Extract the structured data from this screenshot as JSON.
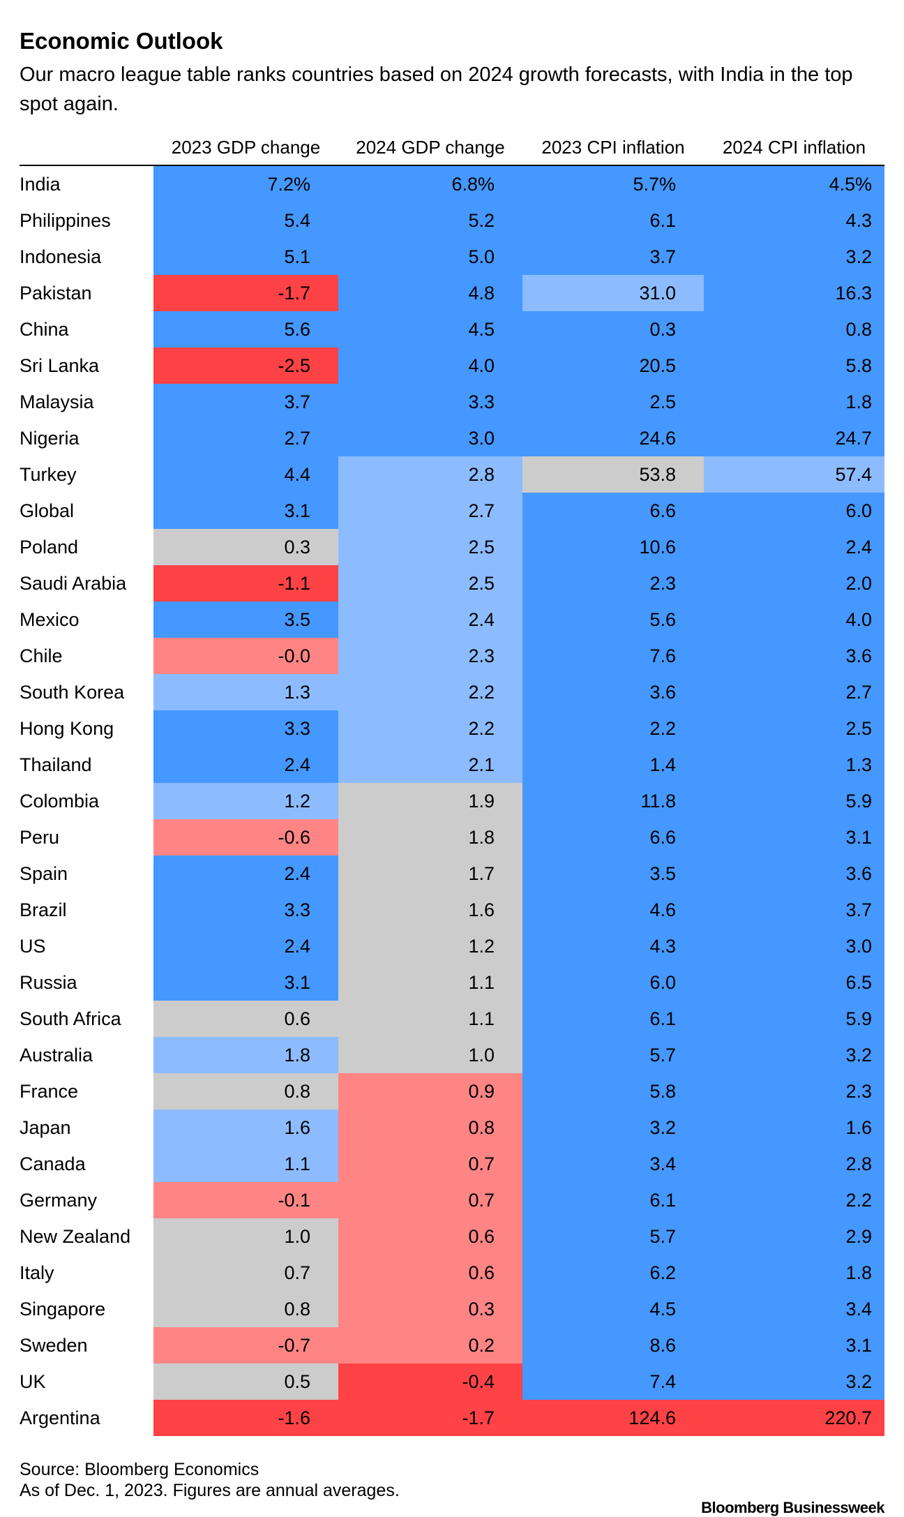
{
  "title": "Economic Outlook",
  "subtitle": "Our macro league table ranks countries based on 2024 growth forecasts, with India in the top spot again.",
  "footer": {
    "source": "Source: Bloomberg Economics",
    "note": "As of Dec. 1, 2023. Figures are annual averages.",
    "brand": "Bloomberg Businessweek"
  },
  "colors": {
    "strong_blue": "#4598FF",
    "light_blue": "#8CBCFF",
    "gray": "#CCCCCC",
    "light_red": "#FF8585",
    "strong_red": "#FF4245"
  },
  "chart_data": {
    "type": "table",
    "title": "Economic Outlook",
    "columns": [
      "2023 GDP change",
      "2024 GDP change",
      "2023 CPI inflation",
      "2024 CPI inflation"
    ],
    "rows": [
      {
        "country": "India",
        "values": [
          "7.2%",
          "6.8%",
          "5.7%",
          "4.5%"
        ],
        "shades": [
          "strong_blue",
          "strong_blue",
          "strong_blue",
          "strong_blue"
        ]
      },
      {
        "country": "Philippines",
        "values": [
          "5.4",
          "5.2",
          "6.1",
          "4.3"
        ],
        "shades": [
          "strong_blue",
          "strong_blue",
          "strong_blue",
          "strong_blue"
        ]
      },
      {
        "country": "Indonesia",
        "values": [
          "5.1",
          "5.0",
          "3.7",
          "3.2"
        ],
        "shades": [
          "strong_blue",
          "strong_blue",
          "strong_blue",
          "strong_blue"
        ]
      },
      {
        "country": "Pakistan",
        "values": [
          "-1.7",
          "4.8",
          "31.0",
          "16.3"
        ],
        "shades": [
          "strong_red",
          "strong_blue",
          "light_blue",
          "strong_blue"
        ]
      },
      {
        "country": "China",
        "values": [
          "5.6",
          "4.5",
          "0.3",
          "0.8"
        ],
        "shades": [
          "strong_blue",
          "strong_blue",
          "strong_blue",
          "strong_blue"
        ]
      },
      {
        "country": "Sri Lanka",
        "values": [
          "-2.5",
          "4.0",
          "20.5",
          "5.8"
        ],
        "shades": [
          "strong_red",
          "strong_blue",
          "strong_blue",
          "strong_blue"
        ]
      },
      {
        "country": "Malaysia",
        "values": [
          "3.7",
          "3.3",
          "2.5",
          "1.8"
        ],
        "shades": [
          "strong_blue",
          "strong_blue",
          "strong_blue",
          "strong_blue"
        ]
      },
      {
        "country": "Nigeria",
        "values": [
          "2.7",
          "3.0",
          "24.6",
          "24.7"
        ],
        "shades": [
          "strong_blue",
          "strong_blue",
          "strong_blue",
          "strong_blue"
        ]
      },
      {
        "country": "Turkey",
        "values": [
          "4.4",
          "2.8",
          "53.8",
          "57.4"
        ],
        "shades": [
          "strong_blue",
          "light_blue",
          "gray",
          "light_blue"
        ]
      },
      {
        "country": "Global",
        "values": [
          "3.1",
          "2.7",
          "6.6",
          "6.0"
        ],
        "shades": [
          "strong_blue",
          "light_blue",
          "strong_blue",
          "strong_blue"
        ]
      },
      {
        "country": "Poland",
        "values": [
          "0.3",
          "2.5",
          "10.6",
          "2.4"
        ],
        "shades": [
          "gray",
          "light_blue",
          "strong_blue",
          "strong_blue"
        ]
      },
      {
        "country": "Saudi Arabia",
        "values": [
          "-1.1",
          "2.5",
          "2.3",
          "2.0"
        ],
        "shades": [
          "strong_red",
          "light_blue",
          "strong_blue",
          "strong_blue"
        ]
      },
      {
        "country": "Mexico",
        "values": [
          "3.5",
          "2.4",
          "5.6",
          "4.0"
        ],
        "shades": [
          "strong_blue",
          "light_blue",
          "strong_blue",
          "strong_blue"
        ]
      },
      {
        "country": "Chile",
        "values": [
          "-0.0",
          "2.3",
          "7.6",
          "3.6"
        ],
        "shades": [
          "light_red",
          "light_blue",
          "strong_blue",
          "strong_blue"
        ]
      },
      {
        "country": "South Korea",
        "values": [
          "1.3",
          "2.2",
          "3.6",
          "2.7"
        ],
        "shades": [
          "light_blue",
          "light_blue",
          "strong_blue",
          "strong_blue"
        ]
      },
      {
        "country": "Hong Kong",
        "values": [
          "3.3",
          "2.2",
          "2.2",
          "2.5"
        ],
        "shades": [
          "strong_blue",
          "light_blue",
          "strong_blue",
          "strong_blue"
        ]
      },
      {
        "country": "Thailand",
        "values": [
          "2.4",
          "2.1",
          "1.4",
          "1.3"
        ],
        "shades": [
          "strong_blue",
          "light_blue",
          "strong_blue",
          "strong_blue"
        ]
      },
      {
        "country": "Colombia",
        "values": [
          "1.2",
          "1.9",
          "11.8",
          "5.9"
        ],
        "shades": [
          "light_blue",
          "gray",
          "strong_blue",
          "strong_blue"
        ]
      },
      {
        "country": "Peru",
        "values": [
          "-0.6",
          "1.8",
          "6.6",
          "3.1"
        ],
        "shades": [
          "light_red",
          "gray",
          "strong_blue",
          "strong_blue"
        ]
      },
      {
        "country": "Spain",
        "values": [
          "2.4",
          "1.7",
          "3.5",
          "3.6"
        ],
        "shades": [
          "strong_blue",
          "gray",
          "strong_blue",
          "strong_blue"
        ]
      },
      {
        "country": "Brazil",
        "values": [
          "3.3",
          "1.6",
          "4.6",
          "3.7"
        ],
        "shades": [
          "strong_blue",
          "gray",
          "strong_blue",
          "strong_blue"
        ]
      },
      {
        "country": "US",
        "values": [
          "2.4",
          "1.2",
          "4.3",
          "3.0"
        ],
        "shades": [
          "strong_blue",
          "gray",
          "strong_blue",
          "strong_blue"
        ]
      },
      {
        "country": "Russia",
        "values": [
          "3.1",
          "1.1",
          "6.0",
          "6.5"
        ],
        "shades": [
          "strong_blue",
          "gray",
          "strong_blue",
          "strong_blue"
        ]
      },
      {
        "country": "South Africa",
        "values": [
          "0.6",
          "1.1",
          "6.1",
          "5.9"
        ],
        "shades": [
          "gray",
          "gray",
          "strong_blue",
          "strong_blue"
        ]
      },
      {
        "country": "Australia",
        "values": [
          "1.8",
          "1.0",
          "5.7",
          "3.2"
        ],
        "shades": [
          "light_blue",
          "gray",
          "strong_blue",
          "strong_blue"
        ]
      },
      {
        "country": "France",
        "values": [
          "0.8",
          "0.9",
          "5.8",
          "2.3"
        ],
        "shades": [
          "gray",
          "light_red",
          "strong_blue",
          "strong_blue"
        ]
      },
      {
        "country": "Japan",
        "values": [
          "1.6",
          "0.8",
          "3.2",
          "1.6"
        ],
        "shades": [
          "light_blue",
          "light_red",
          "strong_blue",
          "strong_blue"
        ]
      },
      {
        "country": "Canada",
        "values": [
          "1.1",
          "0.7",
          "3.4",
          "2.8"
        ],
        "shades": [
          "light_blue",
          "light_red",
          "strong_blue",
          "strong_blue"
        ]
      },
      {
        "country": "Germany",
        "values": [
          "-0.1",
          "0.7",
          "6.1",
          "2.2"
        ],
        "shades": [
          "light_red",
          "light_red",
          "strong_blue",
          "strong_blue"
        ]
      },
      {
        "country": "New Zealand",
        "values": [
          "1.0",
          "0.6",
          "5.7",
          "2.9"
        ],
        "shades": [
          "gray",
          "light_red",
          "strong_blue",
          "strong_blue"
        ]
      },
      {
        "country": "Italy",
        "values": [
          "0.7",
          "0.6",
          "6.2",
          "1.8"
        ],
        "shades": [
          "gray",
          "light_red",
          "strong_blue",
          "strong_blue"
        ]
      },
      {
        "country": "Singapore",
        "values": [
          "0.8",
          "0.3",
          "4.5",
          "3.4"
        ],
        "shades": [
          "gray",
          "light_red",
          "strong_blue",
          "strong_blue"
        ]
      },
      {
        "country": "Sweden",
        "values": [
          "-0.7",
          "0.2",
          "8.6",
          "3.1"
        ],
        "shades": [
          "light_red",
          "light_red",
          "strong_blue",
          "strong_blue"
        ]
      },
      {
        "country": "UK",
        "values": [
          "0.5",
          "-0.4",
          "7.4",
          "3.2"
        ],
        "shades": [
          "gray",
          "strong_red",
          "strong_blue",
          "strong_blue"
        ]
      },
      {
        "country": "Argentina",
        "values": [
          "-1.6",
          "-1.7",
          "124.6",
          "220.7"
        ],
        "shades": [
          "strong_red",
          "strong_red",
          "strong_red",
          "strong_red"
        ]
      }
    ]
  }
}
